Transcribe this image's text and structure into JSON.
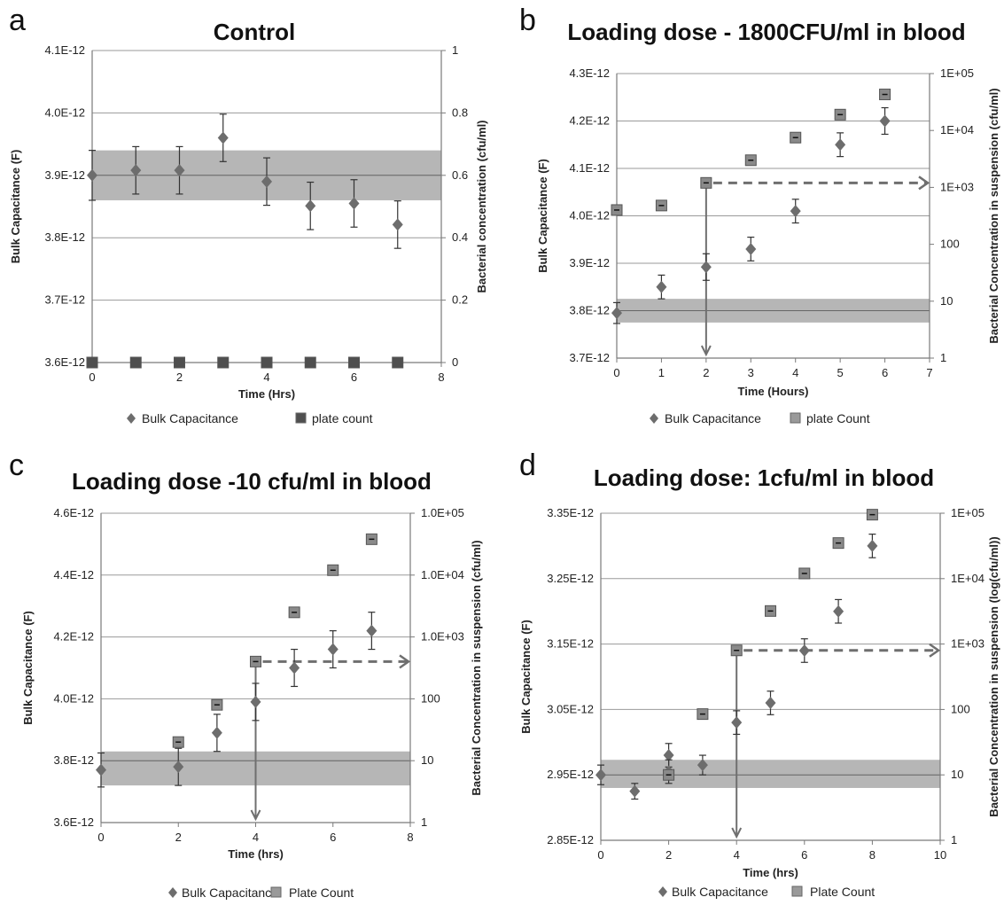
{
  "chart_data": [
    {
      "panel": "a",
      "type": "scatter",
      "title": "Control",
      "xlabel": "Time (Hrs)",
      "ylabel": "Bulk Capacitance (F)",
      "y2label": "Bacterial concentration (cfu/ml)",
      "xlim": [
        0,
        8
      ],
      "ylim": [
        3.6e-12,
        4.1e-12
      ],
      "y2lim": [
        0,
        1
      ],
      "y2scale": "linear",
      "xticks": [
        "0",
        "2",
        "4",
        "6",
        "8"
      ],
      "yticks": [
        "3.6E-12",
        "3.7E-12",
        "3.8E-12",
        "3.9E-12",
        "4.0E-12",
        "4.1E-12"
      ],
      "y2ticks": [
        "0",
        "0.2",
        "0.4",
        "0.6",
        "0.8",
        "1"
      ],
      "band": [
        3.86e-12,
        3.94e-12
      ],
      "band_line": 3.9e-12,
      "series": [
        {
          "name": "Bulk Capacitance",
          "marker": "diamond",
          "axis": "left",
          "x": [
            0,
            1,
            2,
            3,
            4,
            5,
            6,
            7
          ],
          "y": [
            3.9e-12,
            3.908e-12,
            3.908e-12,
            3.96e-12,
            3.89e-12,
            3.851e-12,
            3.855e-12,
            3.821e-12
          ],
          "err": [
            4e-14,
            3.8e-14,
            3.8e-14,
            3.8e-14,
            3.8e-14,
            3.8e-14,
            3.8e-14,
            3.8e-14
          ]
        },
        {
          "name": "plate count",
          "marker": "square",
          "axis": "right",
          "x": [
            0,
            1,
            2,
            3,
            4,
            5,
            6,
            7
          ],
          "y": [
            0,
            0,
            0,
            0,
            0,
            0,
            0,
            0
          ]
        }
      ],
      "legend": [
        "Bulk Capacitance",
        "plate count"
      ],
      "legend_position": "bottom",
      "grid": true
    },
    {
      "panel": "b",
      "type": "scatter",
      "title": "Loading dose - 1800CFU/ml in blood",
      "xlabel": "Time (Hours)",
      "ylabel": "Bulk Capacitance (F)",
      "y2label": "Bacterial Concentration in suspension (cfu/ml)",
      "xlim": [
        0,
        7
      ],
      "ylim": [
        3.7e-12,
        4.3e-12
      ],
      "y2lim": [
        1,
        100000
      ],
      "y2scale": "log",
      "xticks": [
        "0",
        "1",
        "2",
        "3",
        "4",
        "5",
        "6",
        "7"
      ],
      "yticks": [
        "3.7E-12",
        "3.8E-12",
        "3.9E-12",
        "4.0E-12",
        "4.1E-12",
        "4.2E-12",
        "4.3E-12"
      ],
      "y2ticks": [
        "1",
        "10",
        "100",
        "1E+03",
        "1E+04",
        "1E+05"
      ],
      "band": [
        3.775e-12,
        3.825e-12
      ],
      "band_line": 3.8e-12,
      "series": [
        {
          "name": "Bulk Capacitance",
          "marker": "diamond",
          "axis": "left",
          "x": [
            0,
            1,
            2,
            3,
            4,
            5,
            6
          ],
          "y": [
            3.795e-12,
            3.85e-12,
            3.892e-12,
            3.93e-12,
            4.01e-12,
            4.15e-12,
            4.2e-12
          ],
          "err": [
            2.2e-14,
            2.5e-14,
            2.8e-14,
            2.5e-14,
            2.5e-14,
            2.5e-14,
            2.8e-14
          ]
        },
        {
          "name": "plate Count",
          "marker": "square",
          "axis": "right",
          "x": [
            0,
            1,
            2,
            3,
            4,
            5,
            6
          ],
          "y": [
            400,
            480,
            1200,
            3000,
            7500,
            19000,
            43000
          ]
        }
      ],
      "threshold_arrow": {
        "x": 2,
        "from": 1200,
        "dashed_to_x": 7
      },
      "legend": [
        "Bulk Capacitance",
        "plate Count"
      ],
      "legend_position": "bottom",
      "grid": true
    },
    {
      "panel": "c",
      "type": "scatter",
      "title": "Loading dose -10 cfu/ml in blood",
      "xlabel": "Time (hrs)",
      "ylabel": "Bulk Capacitance (F)",
      "y2label": "Bacterial Concentration in suspension (cfu/ml)",
      "xlim": [
        0,
        8
      ],
      "ylim": [
        3.6e-12,
        4.6e-12
      ],
      "y2lim": [
        1,
        100000
      ],
      "y2scale": "log",
      "xticks": [
        "0",
        "2",
        "4",
        "6",
        "8"
      ],
      "yticks": [
        "3.6E-12",
        "3.8E-12",
        "4.0E-12",
        "4.2E-12",
        "4.4E-12",
        "4.6E-12"
      ],
      "y2ticks": [
        "1",
        "10",
        "100",
        "1.0E+03",
        "1.0E+04",
        "1.0E+05"
      ],
      "band": [
        3.72e-12,
        3.83e-12
      ],
      "band_line": 3.8e-12,
      "series": [
        {
          "name": "Bulk Capacitance",
          "marker": "diamond",
          "axis": "left",
          "x": [
            0,
            2,
            3,
            4,
            5,
            6,
            7
          ],
          "y": [
            3.77e-12,
            3.78e-12,
            3.89e-12,
            3.99e-12,
            4.1e-12,
            4.16e-12,
            4.22e-12
          ],
          "err": [
            5.5e-14,
            6e-14,
            6e-14,
            6e-14,
            6e-14,
            6e-14,
            6e-14
          ]
        },
        {
          "name": "Plate Count",
          "marker": "square",
          "axis": "right",
          "x": [
            2,
            3,
            4,
            5,
            6,
            7
          ],
          "y": [
            20,
            80,
            400,
            2500,
            12000,
            38000
          ]
        }
      ],
      "threshold_arrow": {
        "x": 4,
        "from": 400,
        "dashed_to_x": 8
      },
      "legend": [
        "Bulk Capacitance",
        "Plate Count"
      ],
      "legend_position": "bottom",
      "grid": true
    },
    {
      "panel": "d",
      "type": "scatter",
      "title": "Loading dose: 1cfu/ml in blood",
      "xlabel": "Time (hrs)",
      "ylabel": "Bulk Capacitance (F)",
      "y2label": "Bacterial Concentration in suspension (log(cfu/ml))",
      "xlim": [
        0,
        10
      ],
      "ylim": [
        2.85e-12,
        3.35e-12
      ],
      "y2lim": [
        1,
        100000
      ],
      "y2scale": "log",
      "xticks": [
        "0",
        "2",
        "4",
        "6",
        "8",
        "10"
      ],
      "yticks": [
        "2.85E-12",
        "2.95E-12",
        "3.05E-12",
        "3.15E-12",
        "3.25E-12",
        "3.35E-12"
      ],
      "y2ticks": [
        "1",
        "10",
        "100",
        "1E+03",
        "1E+04",
        "1E+05"
      ],
      "band": [
        2.93e-12,
        2.973e-12
      ],
      "band_line": 2.95e-12,
      "series": [
        {
          "name": "Bulk Capacitance",
          "marker": "diamond",
          "axis": "left",
          "x": [
            0,
            1,
            2,
            2,
            3,
            4,
            5,
            6,
            7,
            8
          ],
          "y": [
            2.95e-12,
            2.925e-12,
            2.98e-12,
            2.955e-12,
            2.965e-12,
            3.03e-12,
            3.06e-12,
            3.14e-12,
            3.2e-12,
            3.3e-12
          ],
          "err": [
            1.5e-14,
            1.2e-14,
            1.8e-14,
            1.8e-14,
            1.5e-14,
            1.8e-14,
            1.8e-14,
            1.8e-14,
            1.8e-14,
            1.8e-14
          ]
        },
        {
          "name": "Plate Count",
          "marker": "square",
          "axis": "right",
          "x": [
            2,
            3,
            4,
            5,
            6,
            7,
            8
          ],
          "y": [
            10,
            85,
            800,
            3200,
            12000,
            35000,
            95000
          ]
        }
      ],
      "threshold_arrow": {
        "x": 4,
        "from": 800,
        "dashed_to_x": 10
      },
      "legend": [
        "Bulk Capacitance",
        "Plate Count"
      ],
      "legend_position": "bottom",
      "grid": true
    }
  ],
  "colors": {
    "marker": "#6d6d6d",
    "marker_dark": "#4f4f4f",
    "band": "#a9a9a9",
    "grid": "#9a9a9a",
    "axis": "#7a7a7a",
    "arrow": "#6f6f6f",
    "text": "#222222"
  }
}
